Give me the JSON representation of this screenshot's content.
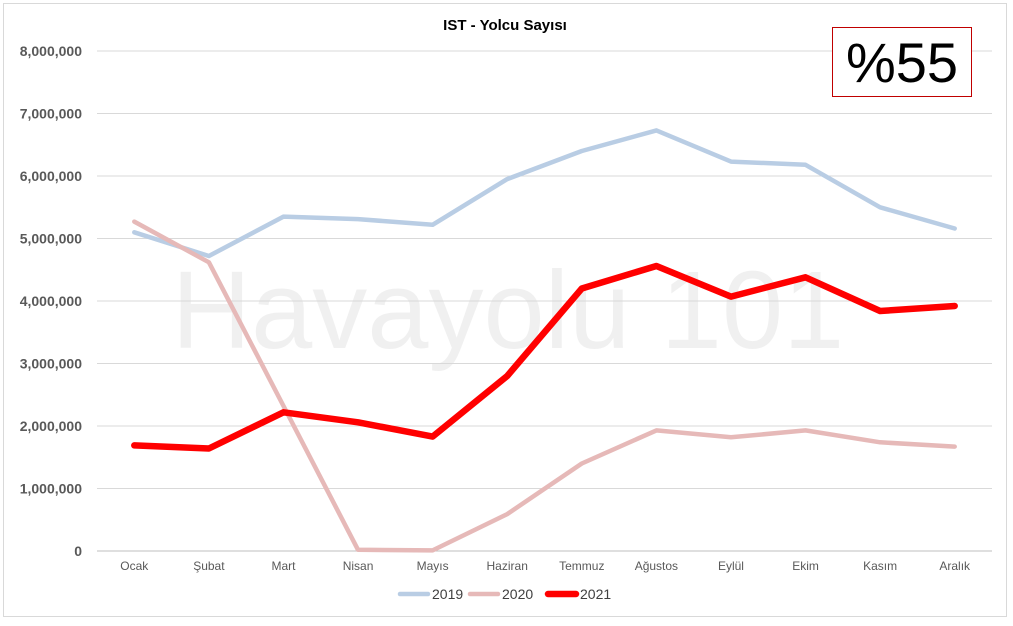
{
  "chart_data": {
    "type": "line",
    "title": "IST - Yolcu Sayısı",
    "xlabel": "",
    "ylabel": "",
    "ylim": [
      0,
      8000000
    ],
    "yticks": [
      0,
      1000000,
      2000000,
      3000000,
      4000000,
      5000000,
      6000000,
      7000000,
      8000000
    ],
    "ytick_labels": [
      "0",
      "1,000,000",
      "2,000,000",
      "3,000,000",
      "4,000,000",
      "5,000,000",
      "6,000,000",
      "7,000,000",
      "8,000,000"
    ],
    "categories": [
      "Ocak",
      "Şubat",
      "Mart",
      "Nisan",
      "Mayıs",
      "Haziran",
      "Temmuz",
      "Ağustos",
      "Eylül",
      "Ekim",
      "Kasım",
      "Aralık"
    ],
    "grid": true,
    "legend_position": "bottom",
    "series": [
      {
        "name": "2019",
        "color": "#b9cde4",
        "values": [
          5100000,
          4720000,
          5350000,
          5310000,
          5220000,
          5950000,
          6400000,
          6730000,
          6230000,
          6180000,
          5500000,
          5160000
        ]
      },
      {
        "name": "2020",
        "color": "#e6b9b8",
        "values": [
          5270000,
          4620000,
          2320000,
          20000,
          10000,
          590000,
          1400000,
          1930000,
          1820000,
          1930000,
          1740000,
          1670000
        ]
      },
      {
        "name": "2021",
        "color": "#ff0000",
        "values": [
          1690000,
          1640000,
          2220000,
          2060000,
          1830000,
          2800000,
          4200000,
          4560000,
          4070000,
          4380000,
          3840000,
          3920000
        ]
      }
    ]
  },
  "badge": {
    "text": "%55"
  },
  "watermark": {
    "text": "Havayolu 101"
  }
}
